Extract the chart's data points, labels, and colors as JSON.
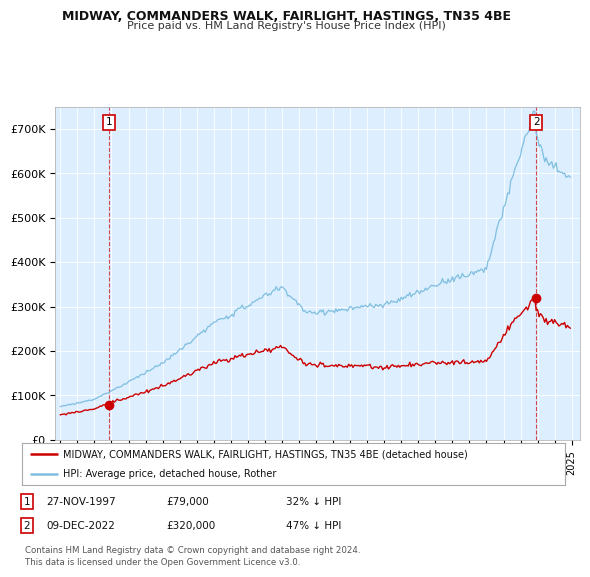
{
  "title": "MIDWAY, COMMANDERS WALK, FAIRLIGHT, HASTINGS, TN35 4BE",
  "subtitle": "Price paid vs. HM Land Registry's House Price Index (HPI)",
  "sale1_date": "27-NOV-1997",
  "sale1_price": 79000,
  "sale1_label": "32% ↓ HPI",
  "sale2_date": "09-DEC-2022",
  "sale2_price": 320000,
  "sale2_label": "47% ↓ HPI",
  "legend_line1": "MIDWAY, COMMANDERS WALK, FAIRLIGHT, HASTINGS, TN35 4BE (detached house)",
  "legend_line2": "HPI: Average price, detached house, Rother",
  "footnote": "Contains HM Land Registry data © Crown copyright and database right 2024.\nThis data is licensed under the Open Government Licence v3.0.",
  "hpi_color": "#7fbfdf",
  "price_color": "#cc0000",
  "sale_dot_color": "#cc0000",
  "dashed_line_color": "#cc0000",
  "background_color": "#ffffff",
  "plot_bg_color": "#ddeeff",
  "grid_color": "#ffffff",
  "ylim": [
    0,
    750000
  ],
  "yticks": [
    0,
    100000,
    200000,
    300000,
    400000,
    500000,
    600000,
    700000
  ],
  "ytick_labels": [
    "£0",
    "£100K",
    "£200K",
    "£300K",
    "£400K",
    "£500K",
    "£600K",
    "£700K"
  ],
  "xstart_year": 1995,
  "xend_year": 2025
}
